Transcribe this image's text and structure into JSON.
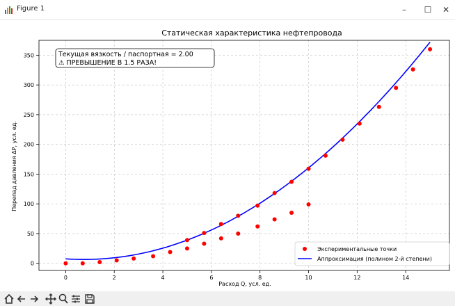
{
  "window": {
    "title": "Figure 1",
    "minimize_glyph": "–",
    "maximize_glyph": "☐",
    "close_glyph": "✕"
  },
  "toolbar": {
    "icons": [
      "home-icon",
      "back-arrow-icon",
      "forward-arrow-icon",
      "pan-icon",
      "zoom-icon",
      "configure-subplots-icon",
      "save-icon"
    ]
  },
  "chart_data": {
    "type": "scatter",
    "title": "Статическая характеристика нефтепровода",
    "xlabel": "Расход Q, усл. ед.",
    "ylabel": "Перепад давления ΔP, усл. ед.",
    "xlim": [
      -1.1,
      15.8
    ],
    "ylim": [
      -12,
      375
    ],
    "xticks": [
      0,
      2,
      4,
      6,
      8,
      10,
      12,
      14
    ],
    "yticks": [
      0,
      50,
      100,
      150,
      200,
      250,
      300,
      350
    ],
    "grid": true,
    "annotation": {
      "line1": "Текущая вязкость / паспортная = 2.00",
      "line2": "⚠ ПРЕВЫШЕНИЕ В 1.5 РАЗА!"
    },
    "legend_position": "bottom-right",
    "series": [
      {
        "name": "Экспериментальные точки",
        "kind": "scatter",
        "color": "#ff0000",
        "points": [
          [
            0,
            0
          ],
          [
            0.7,
            0
          ],
          [
            1.4,
            2
          ],
          [
            2.1,
            5
          ],
          [
            2.8,
            8
          ],
          [
            3.6,
            12
          ],
          [
            4.3,
            19
          ],
          [
            5.0,
            25
          ],
          [
            5.0,
            39
          ],
          [
            5.7,
            33
          ],
          [
            5.7,
            51
          ],
          [
            6.4,
            42
          ],
          [
            6.4,
            66
          ],
          [
            7.1,
            50
          ],
          [
            7.1,
            80
          ],
          [
            7.9,
            62
          ],
          [
            7.9,
            97
          ],
          [
            8.6,
            74
          ],
          [
            8.6,
            118
          ],
          [
            9.3,
            85
          ],
          [
            9.3,
            137
          ],
          [
            10.0,
            99
          ],
          [
            10.0,
            159
          ],
          [
            10.7,
            181
          ],
          [
            11.4,
            208
          ],
          [
            12.1,
            235
          ],
          [
            12.9,
            263
          ],
          [
            13.6,
            295
          ],
          [
            14.3,
            326
          ],
          [
            15.0,
            360
          ]
        ]
      },
      {
        "name": "Аппроксимация (полином 2-й степени)",
        "kind": "line",
        "color": "#0000ff",
        "polynomial": {
          "a": 1.8,
          "b": -2.7,
          "c": 7.5
        },
        "x_range": [
          0,
          15
        ]
      }
    ]
  }
}
